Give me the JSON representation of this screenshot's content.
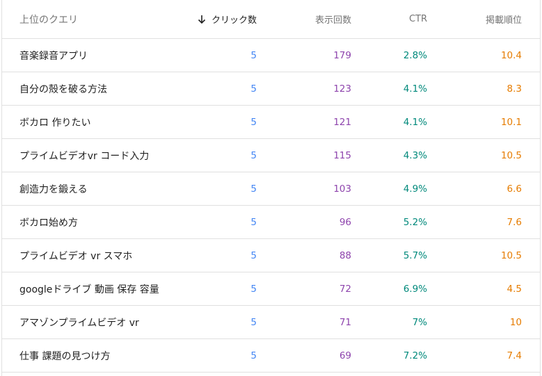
{
  "header": {
    "query_label": "上位のクエリ",
    "clicks_label": "クリック数",
    "clicks_sort_icon": "arrow-down-icon",
    "impressions_label": "表示回数",
    "ctr_label": "CTR",
    "position_label": "掲載順位"
  },
  "colors": {
    "clicks": "#4285f4",
    "impressions": "#8e44ad",
    "ctr": "#00897b",
    "position": "#e67c00"
  },
  "rows": [
    {
      "query": "音楽録音アプリ",
      "clicks": "5",
      "impressions": "179",
      "ctr": "2.8%",
      "position": "10.4"
    },
    {
      "query": "自分の殻を破る方法",
      "clicks": "5",
      "impressions": "123",
      "ctr": "4.1%",
      "position": "8.3"
    },
    {
      "query": "ボカロ 作りたい",
      "clicks": "5",
      "impressions": "121",
      "ctr": "4.1%",
      "position": "10.1"
    },
    {
      "query": "プライムビデオvr コード入力",
      "clicks": "5",
      "impressions": "115",
      "ctr": "4.3%",
      "position": "10.5"
    },
    {
      "query": "創造力を鍛える",
      "clicks": "5",
      "impressions": "103",
      "ctr": "4.9%",
      "position": "6.6"
    },
    {
      "query": "ボカロ始め方",
      "clicks": "5",
      "impressions": "96",
      "ctr": "5.2%",
      "position": "7.6"
    },
    {
      "query": "プライムビデオ vr スマホ",
      "clicks": "5",
      "impressions": "88",
      "ctr": "5.7%",
      "position": "10.5"
    },
    {
      "query": "googleドライブ 動画 保存 容量",
      "clicks": "5",
      "impressions": "72",
      "ctr": "6.9%",
      "position": "4.5"
    },
    {
      "query": "アマゾンプライムビデオ vr",
      "clicks": "5",
      "impressions": "71",
      "ctr": "7%",
      "position": "10"
    },
    {
      "query": "仕事 課題の見つけ方",
      "clicks": "5",
      "impressions": "69",
      "ctr": "7.2%",
      "position": "7.4"
    }
  ]
}
